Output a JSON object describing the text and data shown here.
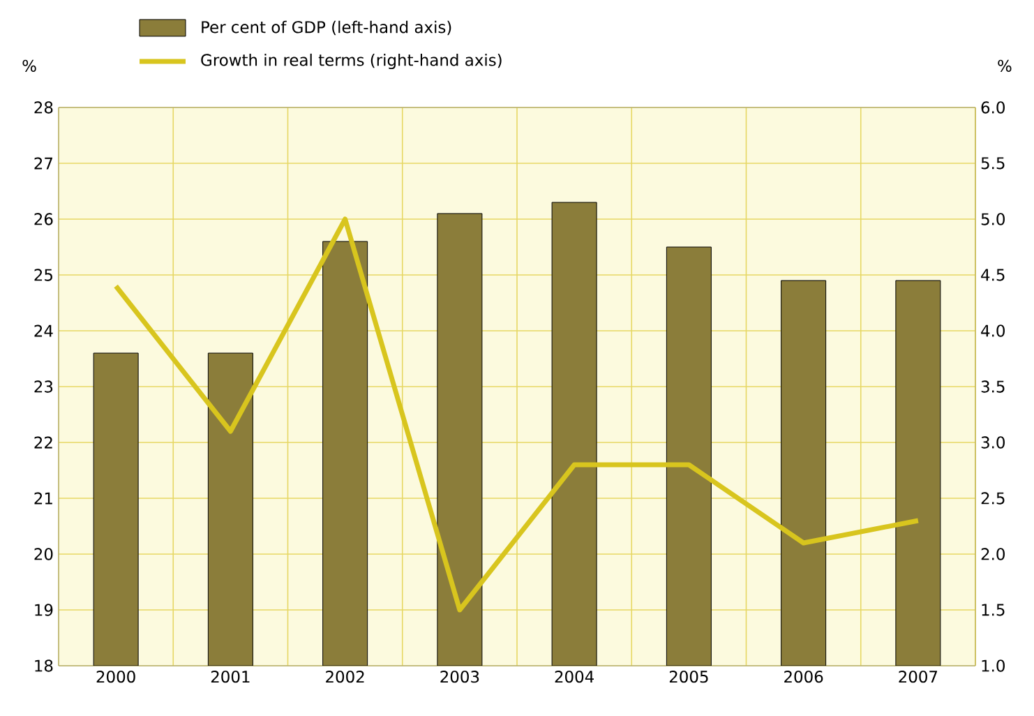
{
  "chart_data": {
    "type": "bar",
    "categories": [
      "2000",
      "2001",
      "2002",
      "2003",
      "2004",
      "2005",
      "2006",
      "2007"
    ],
    "series": [
      {
        "name": "Per cent of GDP (left-hand axis)",
        "color": "#8b7d3a",
        "values": [
          23.6,
          23.6,
          25.6,
          26.1,
          26.3,
          25.5,
          24.9,
          24.9
        ]
      },
      {
        "name": "Growth in real terms (right-hand axis)",
        "type": "line",
        "axis": "y2",
        "color": "#d8c51e",
        "values": [
          4.4,
          3.1,
          5.0,
          1.5,
          2.8,
          2.8,
          2.1,
          2.3
        ]
      }
    ],
    "ylabel": "%",
    "y2label": "%",
    "ylim": [
      18,
      28
    ],
    "yticks": [
      18,
      19,
      20,
      21,
      22,
      23,
      24,
      25,
      26,
      27,
      28
    ],
    "y2lim": [
      1,
      6
    ],
    "y2ticks": [
      {
        "value": 1,
        "label": "1.0"
      },
      {
        "value": 1.5,
        "label": "1.5"
      },
      {
        "value": 2,
        "label": "2.0"
      },
      {
        "value": 2.5,
        "label": "2.5"
      },
      {
        "value": 3,
        "label": "3.0"
      },
      {
        "value": 3.5,
        "label": "3.5"
      },
      {
        "value": 4,
        "label": "4.0"
      },
      {
        "value": 4.5,
        "label": "4.5"
      },
      {
        "value": 5,
        "label": "5.0"
      },
      {
        "value": 5.5,
        "label": "5.5"
      },
      {
        "value": 6,
        "label": "6.0"
      }
    ],
    "grid": true,
    "legend": "top",
    "marker": "none",
    "line_style": "solid"
  }
}
